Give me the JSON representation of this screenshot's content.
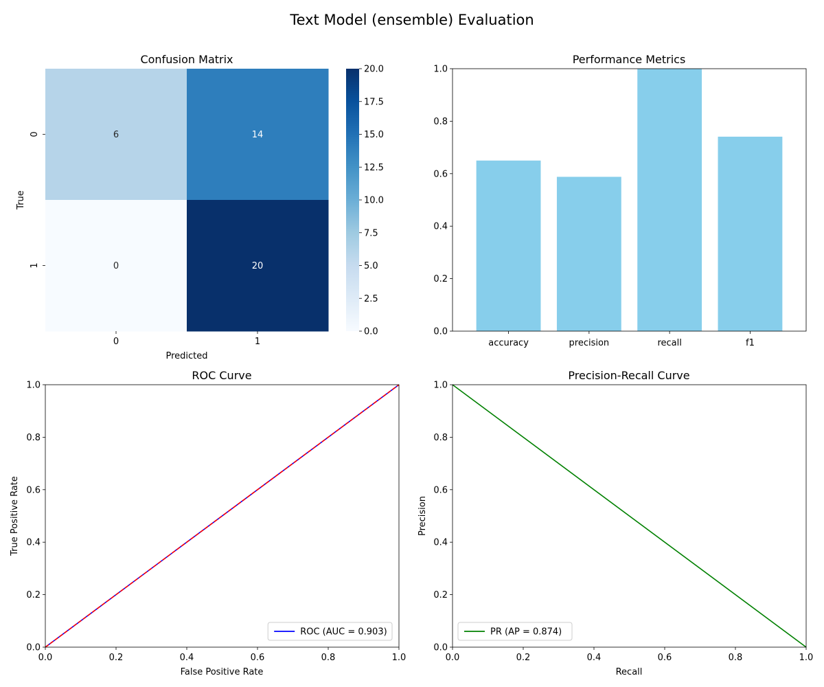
{
  "figure": {
    "title": "Text Model (ensemble) Evaluation"
  },
  "chart_data": [
    {
      "type": "heatmap",
      "title": "Confusion Matrix",
      "xlabel": "Predicted",
      "ylabel": "True",
      "x_categories": [
        "0",
        "1"
      ],
      "y_categories": [
        "0",
        "1"
      ],
      "values": [
        [
          6,
          14
        ],
        [
          0,
          20
        ]
      ],
      "colormap": "Blues",
      "colorbar": {
        "range": [
          0,
          20
        ],
        "ticks": [
          "0.0",
          "2.5",
          "5.0",
          "7.5",
          "10.0",
          "12.5",
          "15.0",
          "17.5",
          "20.0"
        ]
      }
    },
    {
      "type": "bar",
      "title": "Performance Metrics",
      "categories": [
        "accuracy",
        "precision",
        "recall",
        "f1"
      ],
      "values": [
        0.65,
        0.588,
        1.0,
        0.741
      ],
      "ylim": [
        0,
        1
      ],
      "yticks": [
        "0.0",
        "0.2",
        "0.4",
        "0.6",
        "0.8",
        "1.0"
      ],
      "color": "#87ceeb"
    },
    {
      "type": "line",
      "title": "ROC Curve",
      "xlabel": "False Positive Rate",
      "ylabel": "True Positive Rate",
      "xlim": [
        0,
        1
      ],
      "ylim": [
        0,
        1
      ],
      "xticks": [
        "0.0",
        "0.2",
        "0.4",
        "0.6",
        "0.8",
        "1.0"
      ],
      "yticks": [
        "0.0",
        "0.2",
        "0.4",
        "0.6",
        "0.8",
        "1.0"
      ],
      "series": [
        {
          "name": "ROC (AUC = 0.903)",
          "x": [
            0,
            1
          ],
          "y": [
            0,
            1
          ],
          "color": "#0000ff",
          "style": "solid"
        },
        {
          "x": [
            0,
            1
          ],
          "y": [
            0,
            1
          ],
          "color": "#ff0000",
          "style": "dashed"
        }
      ],
      "legend": "lower-right"
    },
    {
      "type": "line",
      "title": "Precision-Recall Curve",
      "xlabel": "Recall",
      "ylabel": "Precision",
      "xlim": [
        0,
        1
      ],
      "ylim": [
        0,
        1
      ],
      "xticks": [
        "0.0",
        "0.2",
        "0.4",
        "0.6",
        "0.8",
        "1.0"
      ],
      "yticks": [
        "0.0",
        "0.2",
        "0.4",
        "0.6",
        "0.8",
        "1.0"
      ],
      "series": [
        {
          "name": "PR (AP = 0.874)",
          "x": [
            0,
            1
          ],
          "y": [
            1,
            0
          ],
          "color": "#008000",
          "style": "solid"
        }
      ],
      "legend": "lower-left"
    }
  ]
}
